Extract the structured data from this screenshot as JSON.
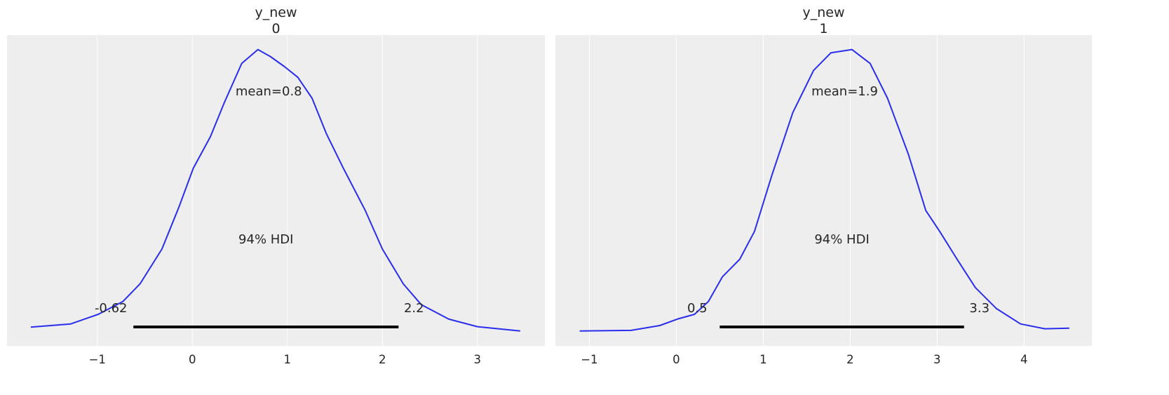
{
  "chart_data": [
    {
      "type": "line",
      "title": [
        "y_new",
        "0"
      ],
      "xlim": [
        -1.95,
        3.71
      ],
      "ylim": [
        -0.028,
        0.553
      ],
      "xticks": [
        -1,
        0,
        1,
        2,
        3
      ],
      "xtick_labels": [
        "−1",
        "0",
        "1",
        "2",
        "3"
      ],
      "grid": "x",
      "line_color": "#2a2eec",
      "background": "#eeeeee",
      "x": [
        -1.7,
        -1.28,
        -0.99,
        -0.73,
        -0.55,
        -0.32,
        -0.14,
        0.01,
        0.19,
        0.34,
        0.52,
        0.69,
        0.82,
        0.97,
        1.11,
        1.26,
        1.41,
        1.59,
        1.82,
        2.0,
        2.22,
        2.41,
        2.7,
        3.0,
        3.45
      ],
      "y": [
        0.007,
        0.013,
        0.031,
        0.055,
        0.088,
        0.153,
        0.232,
        0.304,
        0.363,
        0.428,
        0.5,
        0.526,
        0.513,
        0.494,
        0.474,
        0.435,
        0.369,
        0.304,
        0.225,
        0.153,
        0.088,
        0.049,
        0.022,
        0.008,
        0.0
      ],
      "mean_label": "mean=0.8",
      "hdi_label": "94% HDI",
      "hdi": [
        -0.62,
        2.17
      ],
      "hdi_low_label": "-0.62",
      "hdi_high_label": "2.2"
    },
    {
      "type": "line",
      "title": [
        "y_new",
        "1"
      ],
      "xlim": [
        -1.39,
        4.78
      ],
      "ylim": [
        -0.028,
        0.553
      ],
      "xticks": [
        -1,
        0,
        1,
        2,
        3,
        4
      ],
      "xtick_labels": [
        "−1",
        "0",
        "1",
        "2",
        "3",
        "4"
      ],
      "grid": "x",
      "line_color": "#2a2eec",
      "background": "#eeeeee",
      "x": [
        -1.11,
        -0.52,
        -0.19,
        0.01,
        0.21,
        0.37,
        0.53,
        0.73,
        0.9,
        1.1,
        1.34,
        1.58,
        1.78,
        2.02,
        2.23,
        2.43,
        2.67,
        2.87,
        3.03,
        3.23,
        3.44,
        3.68,
        3.96,
        4.24,
        4.52
      ],
      "y": [
        0.0,
        0.001,
        0.01,
        0.022,
        0.031,
        0.055,
        0.101,
        0.134,
        0.186,
        0.291,
        0.408,
        0.487,
        0.52,
        0.526,
        0.5,
        0.435,
        0.33,
        0.225,
        0.186,
        0.134,
        0.081,
        0.042,
        0.013,
        0.004,
        0.005
      ],
      "mean_label": "mean=1.9",
      "hdi_label": "94% HDI",
      "hdi": [
        0.5,
        3.31
      ],
      "hdi_low_label": "0.5",
      "hdi_high_label": "3.3"
    }
  ]
}
